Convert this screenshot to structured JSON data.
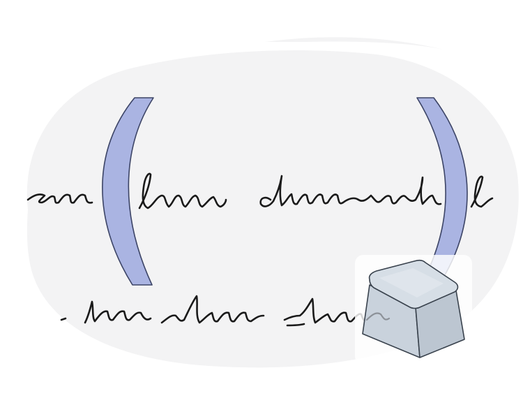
{
  "illustration": {
    "subject": "parentheses-around-scribbled-text-with-keycap",
    "icons": [
      "left-parenthesis-icon",
      "right-parenthesis-icon",
      "keycap-icon"
    ],
    "colors": {
      "background": "#ffffff",
      "blob": "#f3f3f4",
      "parenthesis_fill": "#aab4e2",
      "parenthesis_stroke": "#3c4466",
      "ink": "#1a1a1a",
      "keycap_top": "#d5dde5",
      "keycap_side": "#c2ccd6",
      "keycap_stroke": "#39424d",
      "key_tile": "#ffffff"
    }
  }
}
